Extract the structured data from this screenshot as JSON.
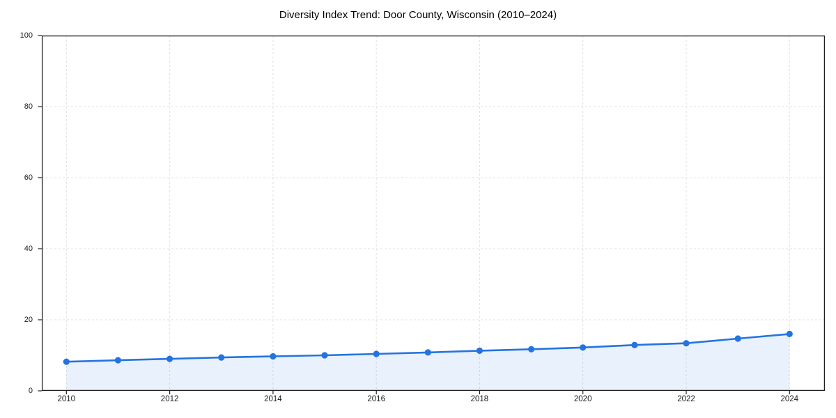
{
  "chart_data": {
    "type": "line",
    "title": "Diversity Index Trend: Door County, Wisconsin (2010–2024)",
    "xlabel": "",
    "ylabel": "",
    "x": [
      2010,
      2011,
      2012,
      2013,
      2014,
      2015,
      2016,
      2017,
      2018,
      2019,
      2020,
      2021,
      2022,
      2023,
      2024
    ],
    "series": [
      {
        "name": "Diversity Index",
        "values": [
          8.2,
          8.6,
          9.0,
          9.4,
          9.7,
          10.0,
          10.4,
          10.8,
          11.3,
          11.7,
          12.2,
          12.9,
          13.4,
          14.7,
          16.0
        ]
      }
    ],
    "ylim": [
      0,
      100
    ],
    "y_ticks": [
      0,
      20,
      40,
      60,
      80,
      100
    ],
    "x_tick_years": [
      2010,
      2012,
      2014,
      2016,
      2018,
      2020,
      2022,
      2024
    ],
    "grid": true,
    "grid_style": "dashed",
    "legend": false,
    "marker": "circle",
    "area_fill": true,
    "colors": {
      "line": "#2374e1",
      "marker": "#2374e1",
      "area_fill": "rgba(35,116,225,0.10)",
      "grid": "#e0e0e0",
      "axis": "#1f1f1f",
      "text": "#1a1a1a",
      "background": "#ffffff"
    }
  }
}
